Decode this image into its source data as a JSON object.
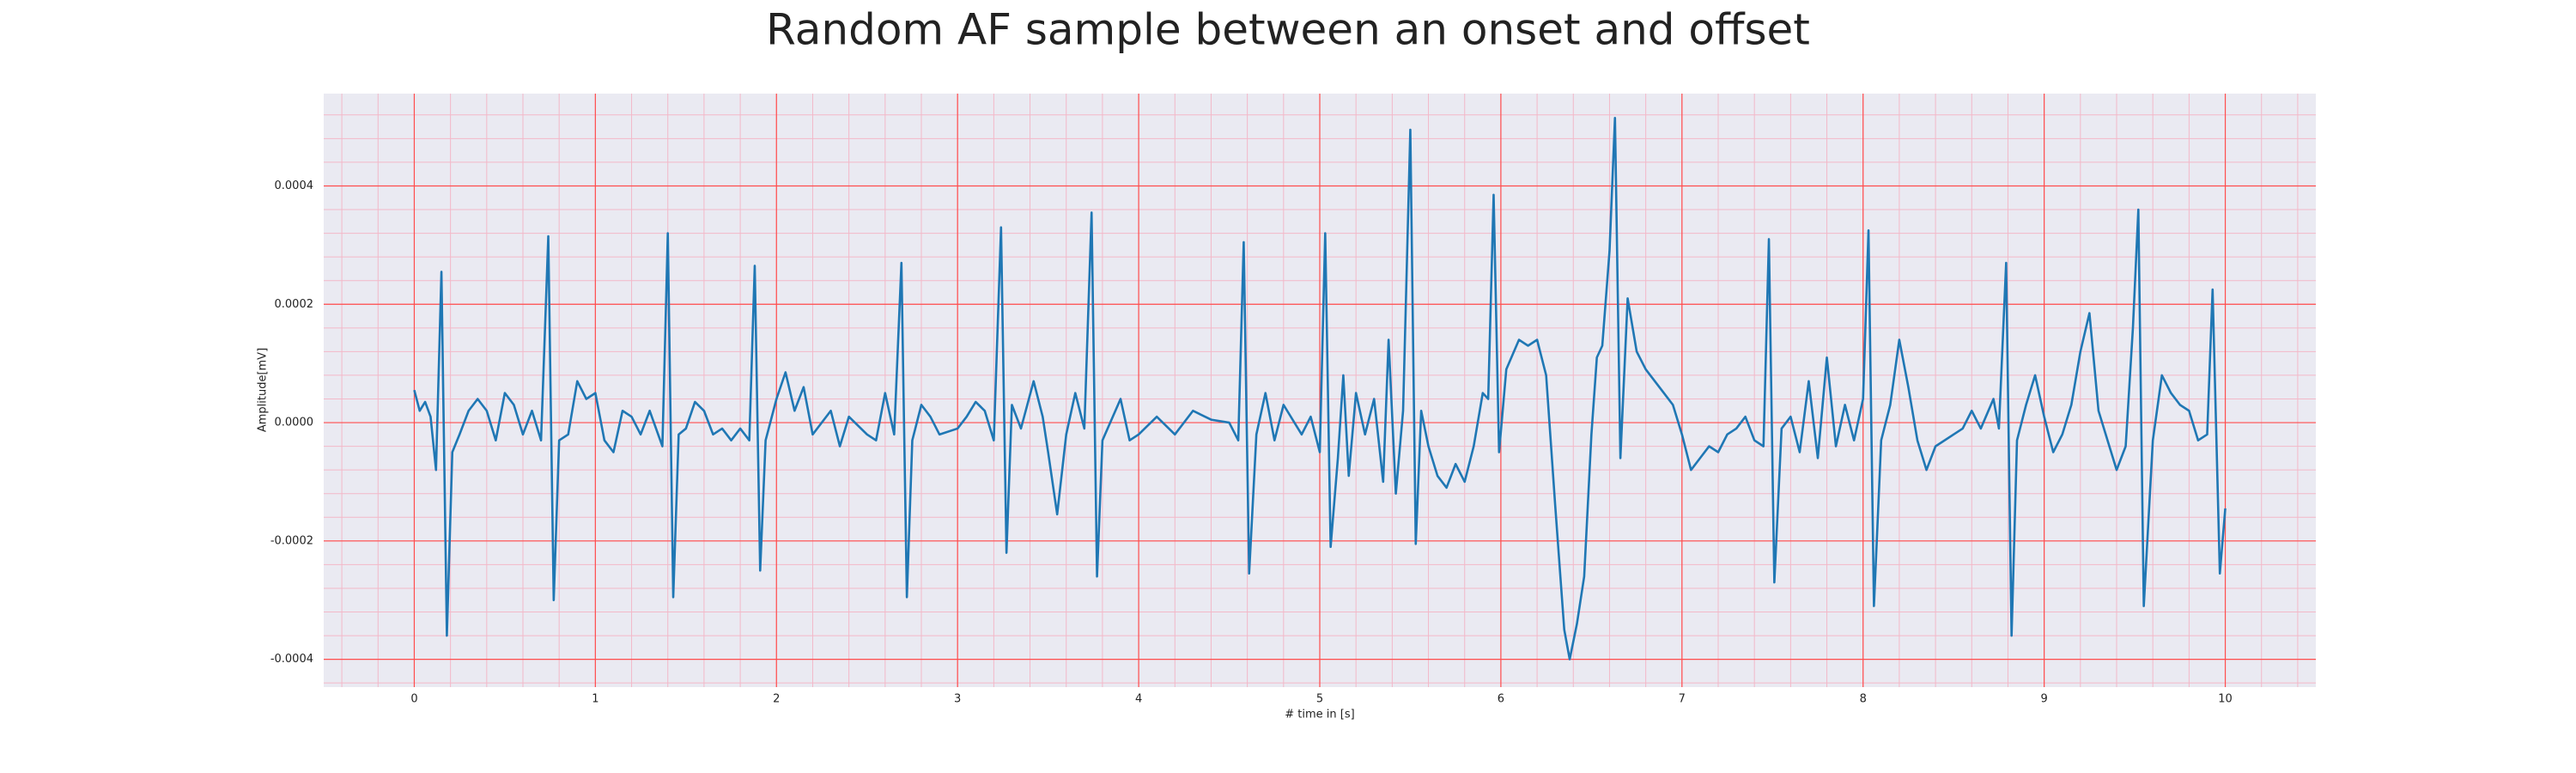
{
  "chart_data": {
    "type": "line",
    "title": "Random AF sample between an onset and offset",
    "x_label": "# time in [s]",
    "y_label": "Amplitude[mV]",
    "xlim": [
      -0.5,
      10.5
    ],
    "ylim": [
      -0.000447,
      0.000556
    ],
    "xticks": [
      0,
      1,
      2,
      3,
      4,
      5,
      6,
      7,
      8,
      9,
      10
    ],
    "yticks": [
      -0.0004,
      -0.0002,
      {
        "value": 0,
        "label": "0.0000"
      },
      0.0002,
      0.0004
    ],
    "grid": true,
    "grid_color": "#ff4d4d",
    "minor_grid": true,
    "minor_grid_color": "#f3b8c8",
    "background": "#eaeaf2",
    "series": [
      {
        "color": "#1f77b4",
        "x": [
          0,
          0.03,
          0.06,
          0.09,
          0.12,
          0.15,
          0.18,
          0.21,
          0.25,
          0.3,
          0.35,
          0.4,
          0.45,
          0.5,
          0.55,
          0.6,
          0.65,
          0.7,
          0.74,
          0.77,
          0.8,
          0.85,
          0.9,
          0.95,
          1.0,
          1.05,
          1.1,
          1.15,
          1.2,
          1.25,
          1.3,
          1.37,
          1.4,
          1.43,
          1.46,
          1.5,
          1.55,
          1.6,
          1.65,
          1.7,
          1.75,
          1.8,
          1.85,
          1.88,
          1.91,
          1.94,
          2.0,
          2.05,
          2.1,
          2.15,
          2.2,
          2.3,
          2.35,
          2.4,
          2.5,
          2.55,
          2.6,
          2.65,
          2.69,
          2.72,
          2.75,
          2.8,
          2.85,
          2.9,
          3.0,
          3.05,
          3.1,
          3.15,
          3.2,
          3.24,
          3.27,
          3.3,
          3.35,
          3.42,
          3.47,
          3.5,
          3.55,
          3.6,
          3.65,
          3.7,
          3.74,
          3.77,
          3.8,
          3.9,
          3.95,
          4.0,
          4.1,
          4.2,
          4.3,
          4.4,
          4.5,
          4.55,
          4.58,
          4.61,
          4.65,
          4.7,
          4.75,
          4.8,
          4.9,
          4.95,
          5.0,
          5.03,
          5.06,
          5.1,
          5.13,
          5.16,
          5.2,
          5.25,
          5.3,
          5.35,
          5.38,
          5.42,
          5.46,
          5.5,
          5.53,
          5.56,
          5.6,
          5.65,
          5.7,
          5.75,
          5.8,
          5.85,
          5.9,
          5.93,
          5.96,
          5.99,
          6.03,
          6.1,
          6.15,
          6.2,
          6.25,
          6.3,
          6.35,
          6.38,
          6.42,
          6.46,
          6.5,
          6.53,
          6.56,
          6.6,
          6.63,
          6.66,
          6.7,
          6.75,
          6.8,
          6.9,
          6.95,
          7.0,
          7.05,
          7.1,
          7.15,
          7.2,
          7.25,
          7.3,
          7.35,
          7.4,
          7.45,
          7.48,
          7.51,
          7.55,
          7.6,
          7.65,
          7.7,
          7.75,
          7.8,
          7.85,
          7.9,
          7.95,
          8.0,
          8.03,
          8.06,
          8.1,
          8.15,
          8.2,
          8.25,
          8.3,
          8.35,
          8.4,
          8.5,
          8.55,
          8.6,
          8.65,
          8.72,
          8.75,
          8.79,
          8.82,
          8.85,
          8.9,
          8.95,
          9.0,
          9.05,
          9.1,
          9.15,
          9.2,
          9.25,
          9.3,
          9.35,
          9.4,
          9.45,
          9.49,
          9.52,
          9.55,
          9.6,
          9.65,
          9.7,
          9.75,
          9.8,
          9.85,
          9.9,
          9.93,
          9.97,
          10.0
        ],
        "values": [
          5.5e-05,
          2e-05,
          3.5e-05,
          1e-05,
          -8e-05,
          0.000255,
          -0.00036,
          -5e-05,
          -2e-05,
          2e-05,
          4e-05,
          2e-05,
          -3e-05,
          5e-05,
          3e-05,
          -2e-05,
          2e-05,
          -3e-05,
          0.000315,
          -0.0003,
          -3e-05,
          -2e-05,
          7e-05,
          4e-05,
          5e-05,
          -3e-05,
          -5e-05,
          2e-05,
          1e-05,
          -2e-05,
          2e-05,
          -4e-05,
          0.00032,
          -0.000295,
          -2e-05,
          -1e-05,
          3.5e-05,
          2e-05,
          -2e-05,
          -1e-05,
          -3e-05,
          -1e-05,
          -3e-05,
          0.000265,
          -0.00025,
          -3e-05,
          4e-05,
          8.5e-05,
          2e-05,
          6e-05,
          -2e-05,
          2e-05,
          -4e-05,
          1e-05,
          -2e-05,
          -3e-05,
          5e-05,
          -2e-05,
          0.00027,
          -0.000295,
          -3e-05,
          3e-05,
          1e-05,
          -2e-05,
          -1e-05,
          1e-05,
          3.5e-05,
          2e-05,
          -3e-05,
          0.00033,
          -0.00022,
          3e-05,
          -1e-05,
          7e-05,
          1e-05,
          -5e-05,
          -0.000155,
          -2e-05,
          5e-05,
          -1e-05,
          0.000355,
          -0.00026,
          -3e-05,
          4e-05,
          -3e-05,
          -2e-05,
          1e-05,
          -2e-05,
          2e-05,
          5e-06,
          0,
          -3e-05,
          0.000305,
          -0.000255,
          -2e-05,
          5e-05,
          -3e-05,
          3e-05,
          -2e-05,
          1e-05,
          -5e-05,
          0.00032,
          -0.00021,
          -6e-05,
          8e-05,
          -9e-05,
          5e-05,
          -2e-05,
          4e-05,
          -0.0001,
          0.00014,
          -0.00012,
          2e-05,
          0.000495,
          -0.000205,
          2e-05,
          -4e-05,
          -9e-05,
          -0.00011,
          -7e-05,
          -0.0001,
          -4e-05,
          5e-05,
          4e-05,
          0.000385,
          -5e-05,
          9e-05,
          0.00014,
          0.00013,
          0.00014,
          8e-05,
          -0.00014,
          -0.00035,
          -0.0004,
          -0.00034,
          -0.00026,
          -2e-05,
          0.00011,
          0.00013,
          0.00029,
          0.000515,
          -6e-05,
          0.00021,
          0.00012,
          9e-05,
          5e-05,
          3e-05,
          -2e-05,
          -8e-05,
          -6e-05,
          -4e-05,
          -5e-05,
          -2e-05,
          -1e-05,
          1e-05,
          -3e-05,
          -4e-05,
          0.00031,
          -0.00027,
          -1e-05,
          1e-05,
          -5e-05,
          7e-05,
          -6e-05,
          0.00011,
          -4e-05,
          3e-05,
          -3e-05,
          4e-05,
          0.000325,
          -0.00031,
          -3e-05,
          3e-05,
          0.00014,
          6e-05,
          -3e-05,
          -8e-05,
          -4e-05,
          -2e-05,
          -1e-05,
          2e-05,
          -1e-05,
          4e-05,
          -1e-05,
          0.00027,
          -0.00036,
          -3e-05,
          3e-05,
          8e-05,
          1e-05,
          -5e-05,
          -2e-05,
          3e-05,
          0.00012,
          0.000185,
          2e-05,
          -3e-05,
          -8e-05,
          -4e-05,
          0.00016,
          0.00036,
          -0.00031,
          -3e-05,
          8e-05,
          5e-05,
          3e-05,
          2e-05,
          -3e-05,
          -2e-05,
          0.000225,
          -0.000255,
          -0.000145
        ]
      }
    ]
  }
}
